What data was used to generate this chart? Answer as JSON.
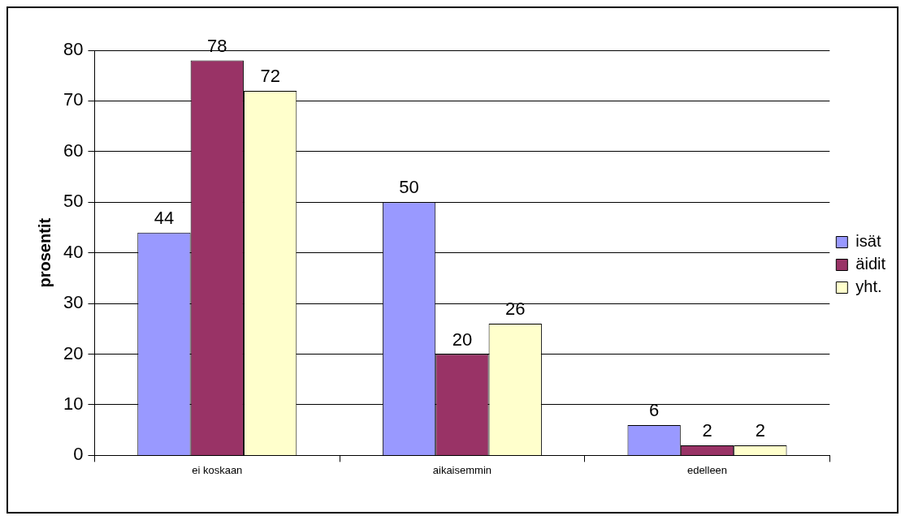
{
  "chart_data": {
    "type": "bar",
    "ylabel": "prosentit",
    "categories": [
      "ei koskaan",
      "aikaisemmin",
      "edelleen"
    ],
    "series": [
      {
        "name": "isät",
        "color": "#9999ff",
        "values": [
          44,
          50,
          6
        ]
      },
      {
        "name": "äidit",
        "color": "#993366",
        "values": [
          78,
          20,
          2
        ]
      },
      {
        "name": "yht.",
        "color": "#ffffcc",
        "values": [
          72,
          26,
          2
        ]
      }
    ],
    "ylim": [
      0,
      80
    ],
    "yticks": [
      0,
      10,
      20,
      30,
      40,
      50,
      60,
      70,
      80
    ],
    "grid": "y",
    "legend": "right",
    "data_labels": true
  }
}
